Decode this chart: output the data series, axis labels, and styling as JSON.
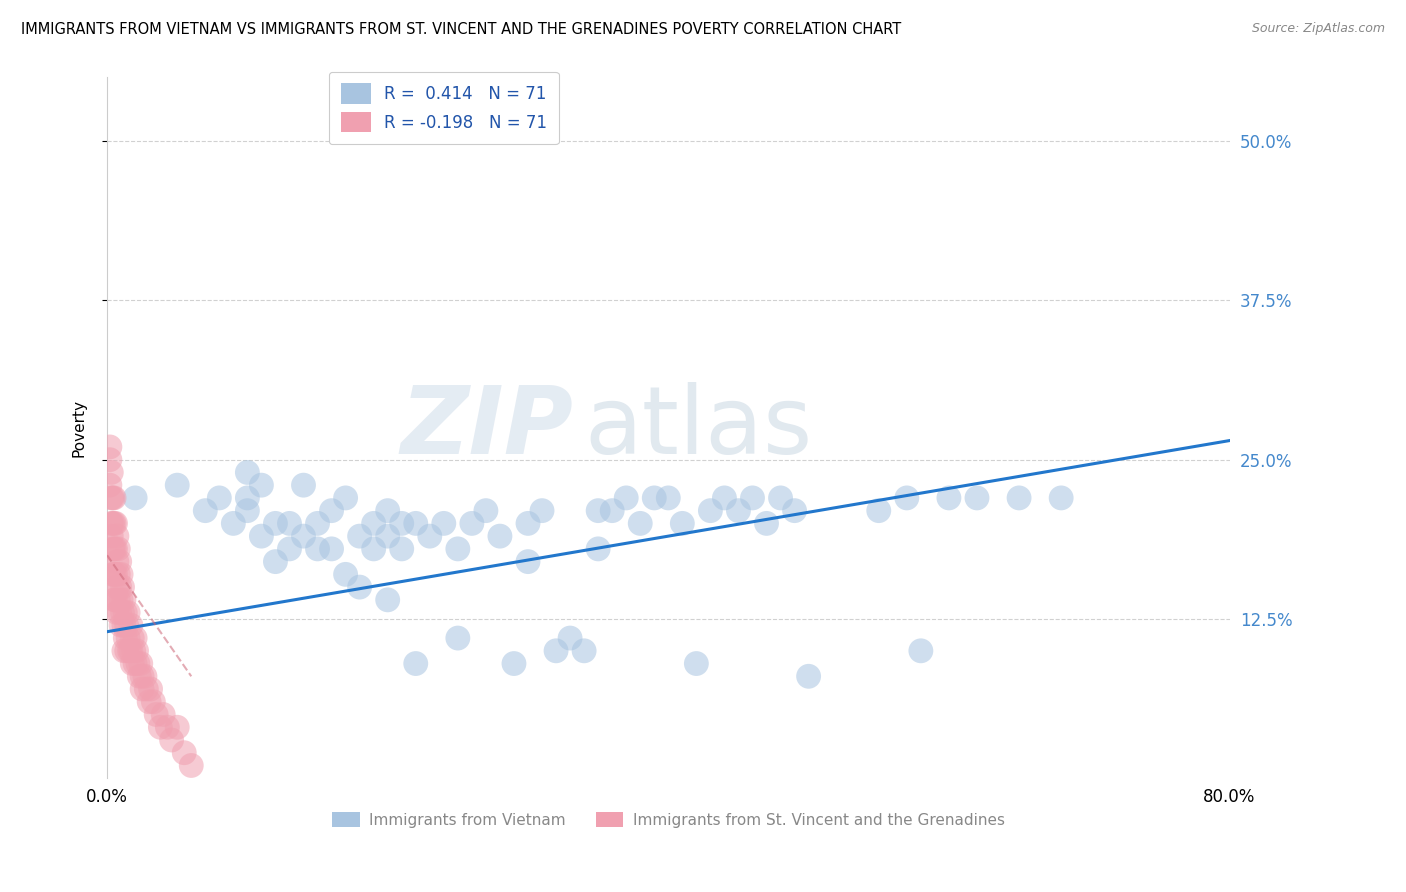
{
  "title": "IMMIGRANTS FROM VIETNAM VS IMMIGRANTS FROM ST. VINCENT AND THE GRENADINES POVERTY CORRELATION CHART",
  "source": "Source: ZipAtlas.com",
  "ylabel_label": "Poverty",
  "ytick_labels": [
    "12.5%",
    "25.0%",
    "37.5%",
    "50.0%"
  ],
  "ytick_values": [
    0.125,
    0.25,
    0.375,
    0.5
  ],
  "xlim": [
    0.0,
    0.8
  ],
  "ylim": [
    0.0,
    0.55
  ],
  "r_vietnam": 0.414,
  "n_vietnam": 71,
  "r_svg": -0.198,
  "n_svg": 71,
  "color_vietnam": "#a8c4e0",
  "color_svg": "#f0a0b0",
  "trend_color_vietnam": "#2277cc",
  "trend_color_svg": "#cc6677",
  "bottom_label_vietnam": "Immigrants from Vietnam",
  "bottom_label_svg": "Immigrants from St. Vincent and the Grenadines",
  "viet_x": [
    0.02,
    0.05,
    0.07,
    0.08,
    0.09,
    0.1,
    0.1,
    0.11,
    0.11,
    0.12,
    0.12,
    0.13,
    0.13,
    0.14,
    0.14,
    0.15,
    0.15,
    0.16,
    0.16,
    0.17,
    0.17,
    0.18,
    0.18,
    0.19,
    0.19,
    0.2,
    0.2,
    0.21,
    0.21,
    0.22,
    0.23,
    0.24,
    0.25,
    0.25,
    0.26,
    0.27,
    0.28,
    0.29,
    0.3,
    0.3,
    0.31,
    0.32,
    0.33,
    0.34,
    0.35,
    0.35,
    0.36,
    0.37,
    0.38,
    0.39,
    0.4,
    0.41,
    0.42,
    0.43,
    0.44,
    0.45,
    0.46,
    0.47,
    0.48,
    0.49,
    0.5,
    0.55,
    0.57,
    0.58,
    0.6,
    0.62,
    0.65,
    0.1,
    0.2,
    0.22,
    0.68
  ],
  "viet_y": [
    0.22,
    0.23,
    0.21,
    0.22,
    0.2,
    0.21,
    0.22,
    0.19,
    0.23,
    0.17,
    0.2,
    0.2,
    0.18,
    0.23,
    0.19,
    0.2,
    0.18,
    0.21,
    0.18,
    0.22,
    0.16,
    0.19,
    0.15,
    0.2,
    0.18,
    0.19,
    0.21,
    0.2,
    0.18,
    0.2,
    0.19,
    0.2,
    0.18,
    0.11,
    0.2,
    0.21,
    0.19,
    0.09,
    0.17,
    0.2,
    0.21,
    0.1,
    0.11,
    0.1,
    0.18,
    0.21,
    0.21,
    0.22,
    0.2,
    0.22,
    0.22,
    0.2,
    0.09,
    0.21,
    0.22,
    0.21,
    0.22,
    0.2,
    0.22,
    0.21,
    0.08,
    0.21,
    0.22,
    0.1,
    0.22,
    0.22,
    0.22,
    0.24,
    0.14,
    0.09,
    0.22
  ],
  "svg_x": [
    0.002,
    0.002,
    0.003,
    0.003,
    0.003,
    0.003,
    0.004,
    0.004,
    0.004,
    0.004,
    0.005,
    0.005,
    0.005,
    0.005,
    0.005,
    0.006,
    0.006,
    0.006,
    0.006,
    0.007,
    0.007,
    0.007,
    0.007,
    0.008,
    0.008,
    0.008,
    0.009,
    0.009,
    0.009,
    0.01,
    0.01,
    0.01,
    0.011,
    0.011,
    0.012,
    0.012,
    0.012,
    0.013,
    0.013,
    0.014,
    0.014,
    0.015,
    0.015,
    0.016,
    0.017,
    0.017,
    0.018,
    0.018,
    0.019,
    0.02,
    0.02,
    0.021,
    0.022,
    0.023,
    0.024,
    0.025,
    0.025,
    0.027,
    0.028,
    0.03,
    0.031,
    0.033,
    0.035,
    0.038,
    0.04,
    0.043,
    0.046,
    0.05,
    0.055,
    0.06,
    0.002
  ],
  "svg_y": [
    0.25,
    0.23,
    0.24,
    0.22,
    0.2,
    0.19,
    0.22,
    0.2,
    0.18,
    0.16,
    0.22,
    0.2,
    0.18,
    0.16,
    0.14,
    0.2,
    0.18,
    0.16,
    0.14,
    0.19,
    0.17,
    0.15,
    0.13,
    0.18,
    0.16,
    0.14,
    0.17,
    0.15,
    0.13,
    0.16,
    0.14,
    0.12,
    0.15,
    0.13,
    0.14,
    0.12,
    0.1,
    0.13,
    0.11,
    0.12,
    0.1,
    0.13,
    0.11,
    0.1,
    0.12,
    0.1,
    0.11,
    0.09,
    0.1,
    0.11,
    0.09,
    0.1,
    0.09,
    0.08,
    0.09,
    0.08,
    0.07,
    0.08,
    0.07,
    0.06,
    0.07,
    0.06,
    0.05,
    0.04,
    0.05,
    0.04,
    0.03,
    0.04,
    0.02,
    0.01,
    0.26
  ]
}
